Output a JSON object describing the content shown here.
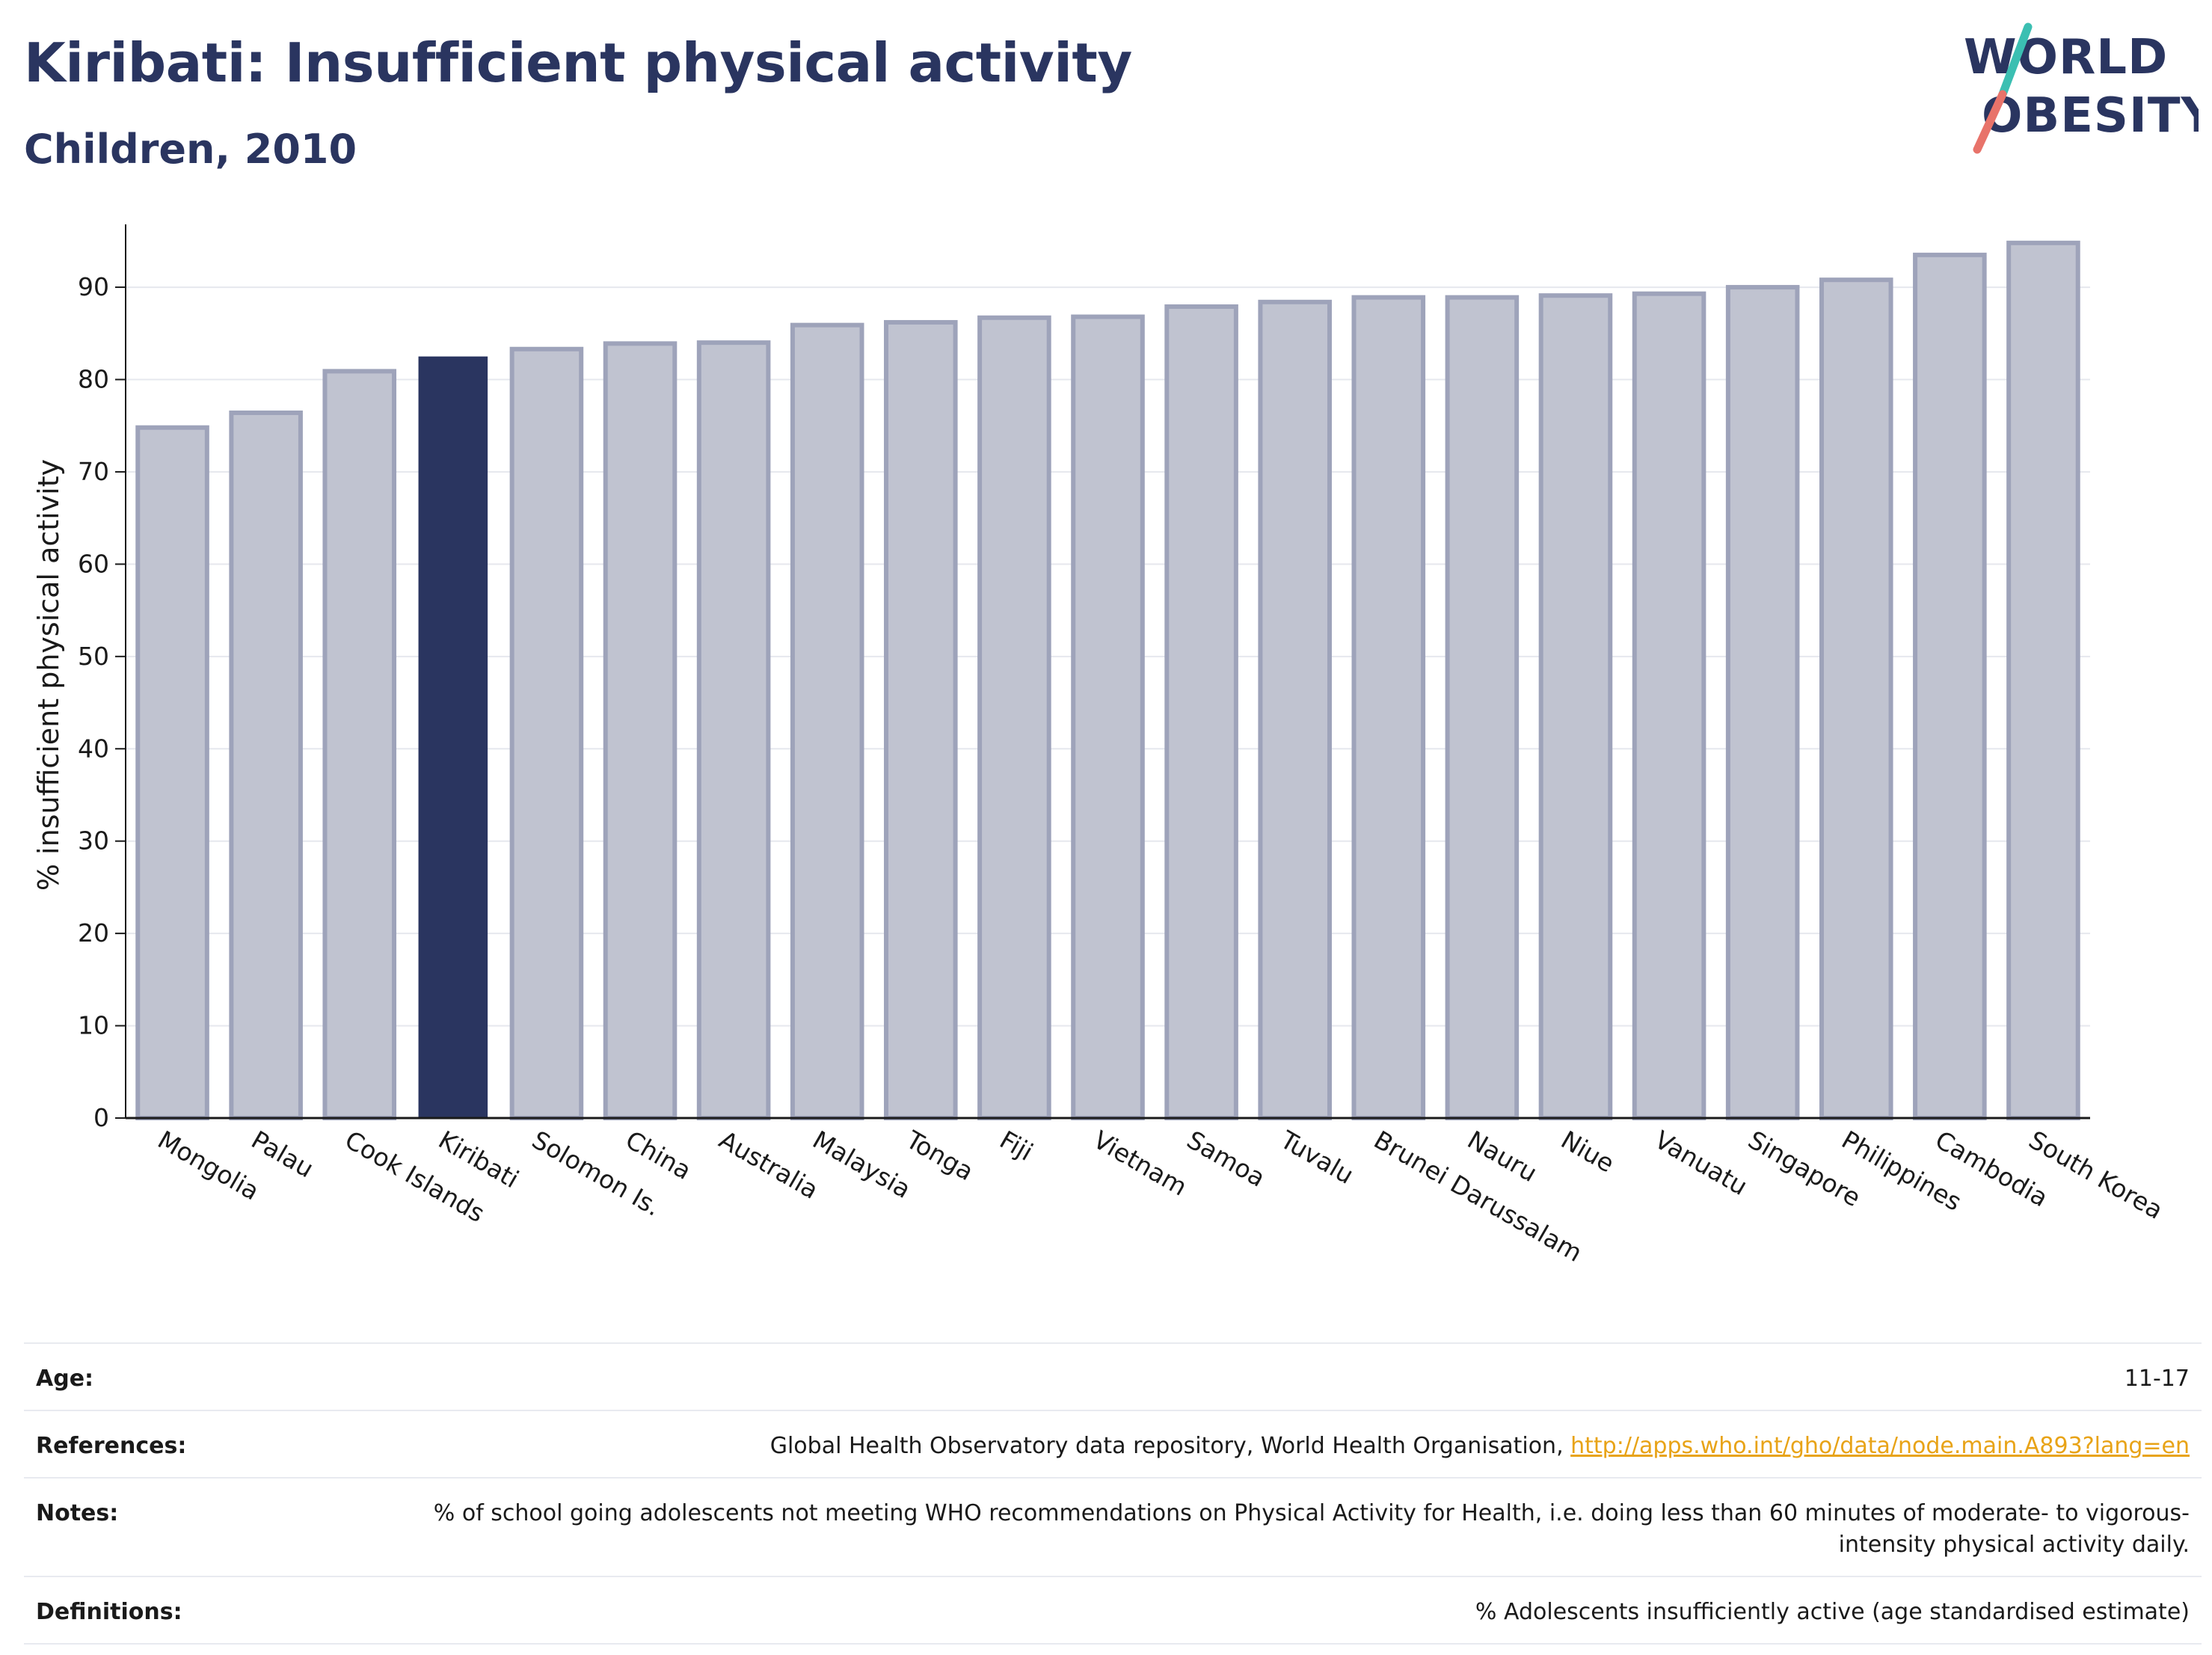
{
  "header": {
    "title": "Kiribati: Insufficient physical activity",
    "subtitle": "Children, 2010"
  },
  "logo": {
    "line1": "WORLD",
    "line2": "OBESITY"
  },
  "chart_data": {
    "type": "bar",
    "ylabel": "% insufficient physical activity",
    "ylim": [
      0,
      96
    ],
    "yticks": [
      0,
      10,
      20,
      30,
      40,
      50,
      60,
      70,
      80,
      90
    ],
    "grid": true,
    "highlight": "Kiribati",
    "colors": {
      "bar": "#c0c3d0",
      "bar_edge": "#9ea3ba",
      "highlight": "#2a3560"
    },
    "categories": [
      "Mongolia",
      "Palau",
      "Cook Islands",
      "Kiribati",
      "Solomon Is.",
      "China",
      "Australia",
      "Malaysia",
      "Tonga",
      "Fiji",
      "Vietnam",
      "Samoa",
      "Tuvalu",
      "Brunei Darussalam",
      "Nauru",
      "Niue",
      "Vanuatu",
      "Singapore",
      "Philippines",
      "Cambodia",
      "South Korea"
    ],
    "values": [
      74.8,
      76.4,
      80.9,
      82.5,
      83.3,
      83.9,
      84.0,
      85.9,
      86.2,
      86.7,
      86.8,
      87.9,
      88.4,
      88.9,
      88.9,
      89.1,
      89.3,
      90.0,
      90.8,
      93.5,
      94.8
    ]
  },
  "meta": {
    "age_label": "Age:",
    "age_value": "11-17",
    "references_label": "References:",
    "references_text": "Global Health Observatory data repository, World Health Organisation, ",
    "references_link": "http://apps.who.int/gho/data/node.main.A893?lang=en",
    "notes_label": "Notes:",
    "notes_value": "% of school going adolescents not meeting WHO recommendations on Physical Activity for Health, i.e. doing less than 60 minutes of moderate- to vigorous-intensity physical activity daily.",
    "definitions_label": "Definitions:",
    "definitions_value": "% Adolescents insufficiently active (age standardised estimate)"
  }
}
